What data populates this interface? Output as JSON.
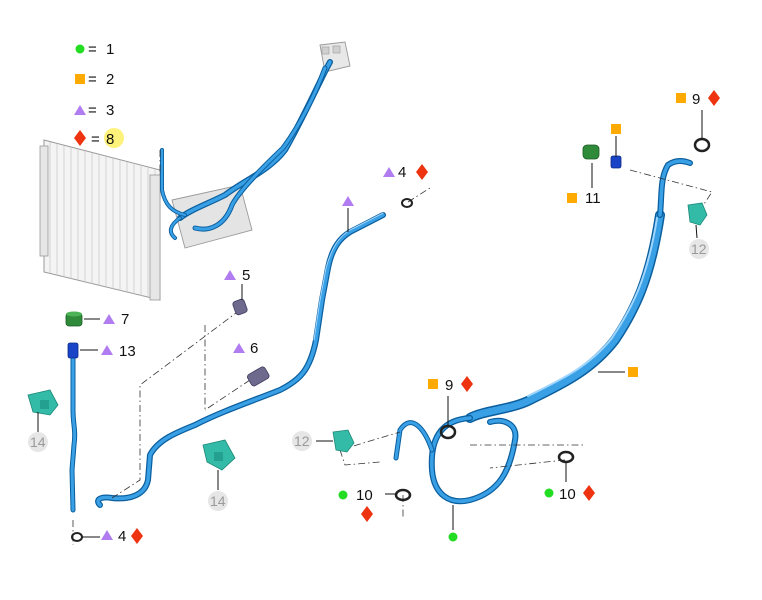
{
  "colors": {
    "circle": "#22dd22",
    "square": "#ffaa00",
    "triangle": "#b07cf0",
    "diamond": "#ee3311",
    "hose": "#1a7fcc",
    "bracket": "#33bba8",
    "highlight": "#fff27a"
  },
  "legend": [
    {
      "symbol": "circle",
      "eq": "=",
      "value": "1"
    },
    {
      "symbol": "square",
      "eq": "=",
      "value": "2"
    },
    {
      "symbol": "triangle",
      "eq": "=",
      "value": "3"
    },
    {
      "symbol": "diamond",
      "eq": "=",
      "value": "8"
    }
  ],
  "callouts": {
    "c4_top": "4",
    "c5": "5",
    "c6": "6",
    "c7": "7",
    "c13": "13",
    "c14_left": "14",
    "c14_mid": "14",
    "c4_bottom": "4",
    "c9_top": "9",
    "c11": "11",
    "c12_right": "12",
    "c9_mid": "9",
    "c12_mid": "12",
    "c10_left": "10",
    "c10_right": "10"
  }
}
